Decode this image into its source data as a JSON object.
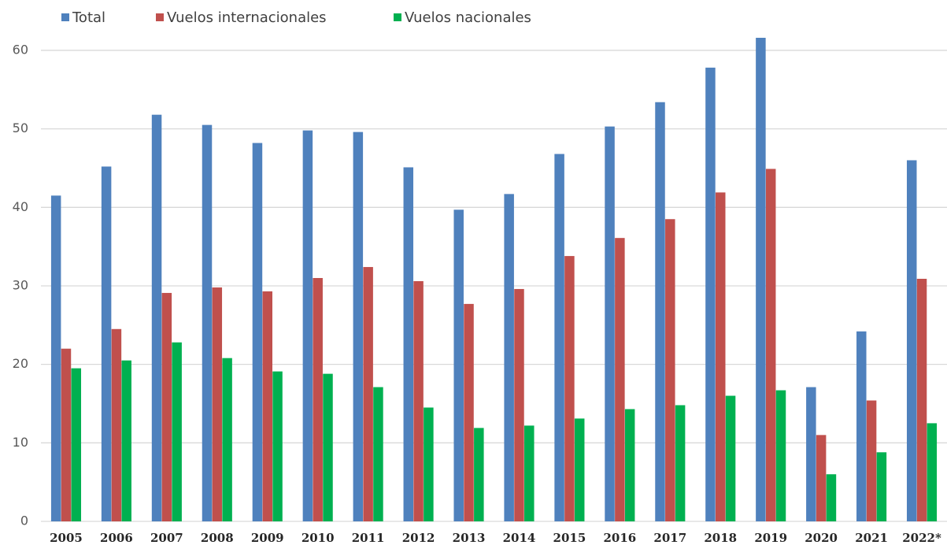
{
  "chart_data": {
    "type": "bar",
    "categories": [
      "2005",
      "2006",
      "2007",
      "2008",
      "2009",
      "2010",
      "2011",
      "2012",
      "2013",
      "2014",
      "2015",
      "2016",
      "2017",
      "2018",
      "2019",
      "2020",
      "2021",
      "2022*"
    ],
    "series": [
      {
        "name": "Total",
        "color": "#4f81bd",
        "values": [
          41.5,
          45.2,
          51.8,
          50.5,
          48.2,
          49.8,
          49.6,
          45.1,
          39.7,
          41.7,
          46.8,
          50.3,
          53.4,
          57.8,
          61.6,
          17.1,
          24.2,
          46.0
        ]
      },
      {
        "name": "Vuelos internacionales",
        "color": "#c0504d",
        "values": [
          22.0,
          24.5,
          29.1,
          29.8,
          29.3,
          31.0,
          32.4,
          30.6,
          27.7,
          29.6,
          33.8,
          36.1,
          38.5,
          41.9,
          44.9,
          11.0,
          15.4,
          30.9
        ]
      },
      {
        "name": "Vuelos nacionales",
        "color": "#00b050",
        "values": [
          19.5,
          20.5,
          22.8,
          20.8,
          19.1,
          18.8,
          17.1,
          14.5,
          11.9,
          12.2,
          13.1,
          14.3,
          14.8,
          16.0,
          16.7,
          6.0,
          8.8,
          12.5
        ]
      }
    ],
    "ylim": [
      0,
      62
    ],
    "yticks": [
      0,
      10,
      20,
      30,
      40,
      50,
      60
    ],
    "grid": true,
    "legend": "top-left"
  }
}
